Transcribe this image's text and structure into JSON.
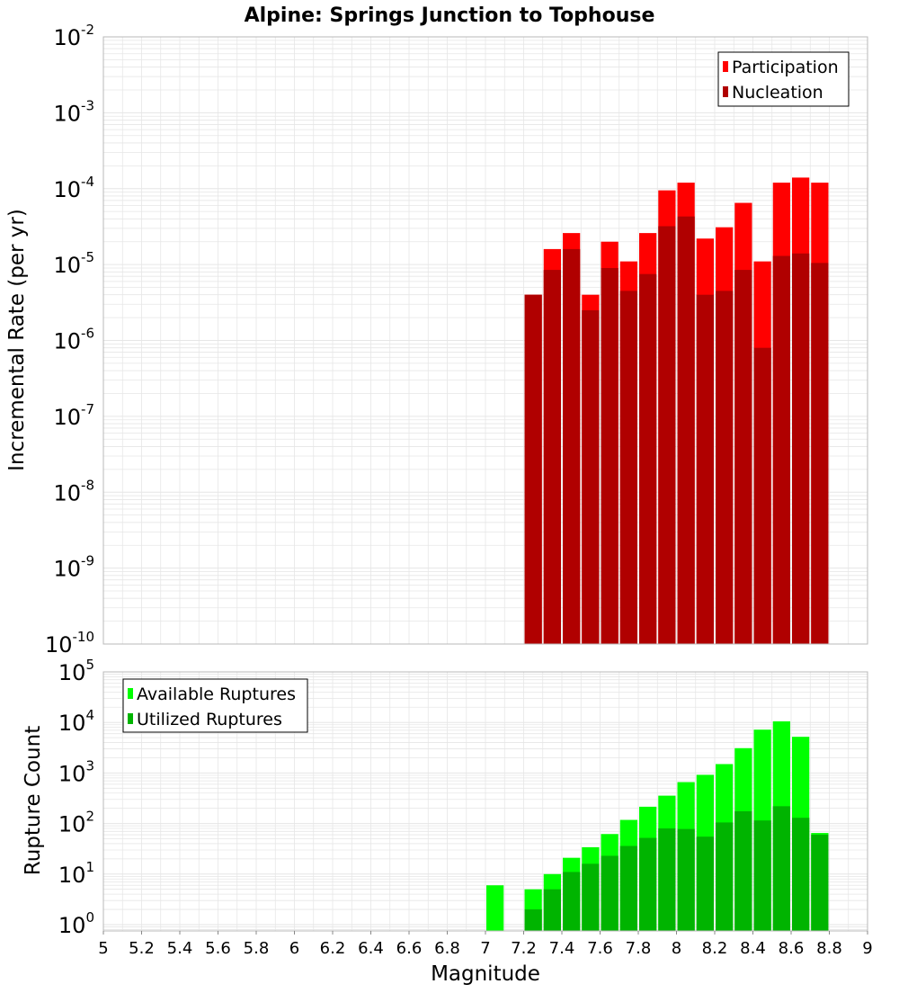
{
  "title": "Alpine: Springs Junction to Tophouse",
  "colors": {
    "participation": "#ff0000",
    "nucleation": "#b00000",
    "available": "#00ff00",
    "utilized": "#00b400",
    "grid": "#e6e6e6",
    "plot_border": "#b8b8b8"
  },
  "chart_data": [
    {
      "type": "bar",
      "title": "Alpine: Springs Junction to Tophouse",
      "xlabel": "",
      "ylabel": "Incremental Rate (per yr)",
      "yscale": "log",
      "ylim": [
        1e-10,
        0.01
      ],
      "xlim": [
        5,
        9
      ],
      "ytick_exponents": [
        -10,
        -9,
        -8,
        -7,
        -6,
        -5,
        -4,
        -3,
        -2
      ],
      "grid": true,
      "legend_position": "top-right",
      "bar_centers": [
        7.25,
        7.35,
        7.45,
        7.55,
        7.65,
        7.75,
        7.85,
        7.95,
        8.05,
        8.15,
        8.25,
        8.35,
        8.45,
        8.55,
        8.65,
        8.75
      ],
      "series": [
        {
          "name": "Participation",
          "values": [
            4e-06,
            1.6e-05,
            2.6e-05,
            4e-06,
            2e-05,
            1.1e-05,
            2.6e-05,
            9.5e-05,
            0.00012,
            2.2e-05,
            3.1e-05,
            6.5e-05,
            1.1e-05,
            0.00012,
            0.00014,
            0.00012
          ]
        },
        {
          "name": "Nucleation",
          "values": [
            4e-06,
            8.5e-06,
            1.6e-05,
            2.5e-06,
            9e-06,
            4.5e-06,
            7.5e-06,
            3.2e-05,
            4.3e-05,
            4e-06,
            4.5e-06,
            8.5e-06,
            8e-07,
            1.3e-05,
            1.4e-05,
            1.05e-05
          ]
        }
      ]
    },
    {
      "type": "bar",
      "title": "",
      "xlabel": "Magnitude",
      "ylabel": "Rupture Count",
      "yscale": "log",
      "ylim": [
        0.75,
        100000.0
      ],
      "xlim": [
        5,
        9
      ],
      "ytick_exponents": [
        0,
        1,
        2,
        3,
        4,
        5
      ],
      "xticks": [
        "5",
        "5.2",
        "5.4",
        "5.6",
        "5.8",
        "6",
        "6.2",
        "6.4",
        "6.6",
        "6.8",
        "7",
        "7.2",
        "7.4",
        "7.6",
        "7.8",
        "8",
        "8.2",
        "8.4",
        "8.6",
        "8.8",
        "9"
      ],
      "grid": true,
      "legend_position": "top-left",
      "bar_centers": [
        7.05,
        7.25,
        7.35,
        7.45,
        7.55,
        7.65,
        7.75,
        7.85,
        7.95,
        8.05,
        8.15,
        8.25,
        8.35,
        8.45,
        8.55,
        8.65,
        8.75
      ],
      "series": [
        {
          "name": "Available Ruptures",
          "values": [
            6,
            5,
            10,
            21,
            34,
            62,
            118,
            215,
            356,
            660,
            920,
            1500,
            3100,
            7200,
            10500,
            5200,
            65
          ]
        },
        {
          "name": "Utilized Ruptures",
          "values": [
            0,
            2,
            5,
            11,
            16,
            23,
            36,
            52,
            80,
            78,
            55,
            105,
            175,
            115,
            220,
            130,
            60
          ]
        }
      ]
    }
  ]
}
